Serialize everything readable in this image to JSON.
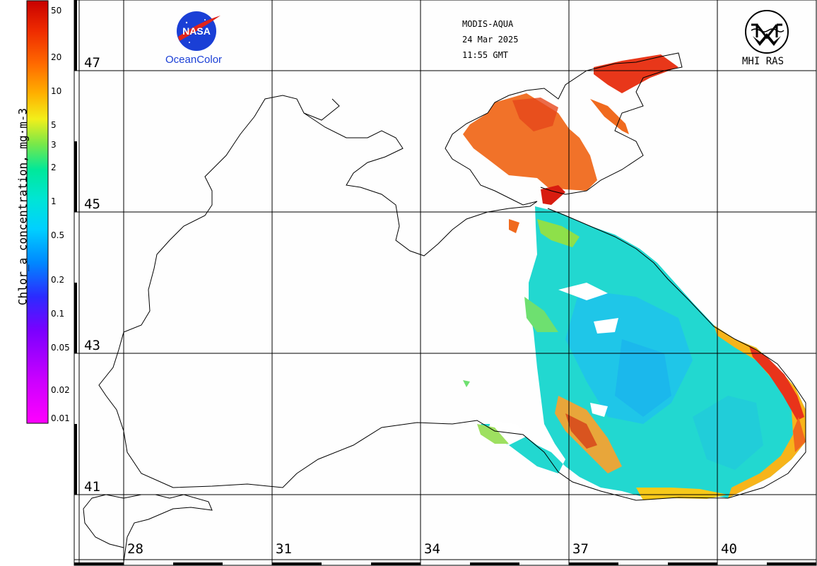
{
  "header": {
    "sensor": "MODIS-AQUA",
    "date": "24 Mar 2025",
    "time": "11:55 GMT"
  },
  "logos": {
    "nasa_logo_text": "NASA",
    "nasa_subtitle": "OceanColor",
    "mhi_label": "MHI RAS"
  },
  "colorbar": {
    "title": "Chlor_a concentration, mg·m-3",
    "ticks": [
      "50",
      "20",
      "10",
      "5",
      "3",
      "2",
      "1",
      "0.5",
      "0.2",
      "0.1",
      "0.05",
      "0.02",
      "0.01"
    ],
    "colors": [
      "#ff00ff",
      "#9900ff",
      "#2b2bff",
      "#00aaff",
      "#00e5e5",
      "#00e89a",
      "#77e84a",
      "#f2ef1a",
      "#ffb000",
      "#ff6a00",
      "#ee2a00",
      "#c80000"
    ],
    "scale": "log"
  },
  "map": {
    "lat_labels": [
      "47",
      "45",
      "43",
      "41"
    ],
    "lon_labels": [
      "28",
      "31",
      "34",
      "37",
      "40"
    ]
  },
  "chart_data": {
    "type": "heatmap",
    "title": "",
    "variable": "Chlor_a concentration, mg·m-3",
    "x_ticks": [
      28,
      31,
      34,
      37,
      40
    ],
    "y_ticks": [
      47,
      45,
      43,
      41
    ],
    "value_range": [
      0.01,
      50
    ],
    "scale": "log"
  }
}
